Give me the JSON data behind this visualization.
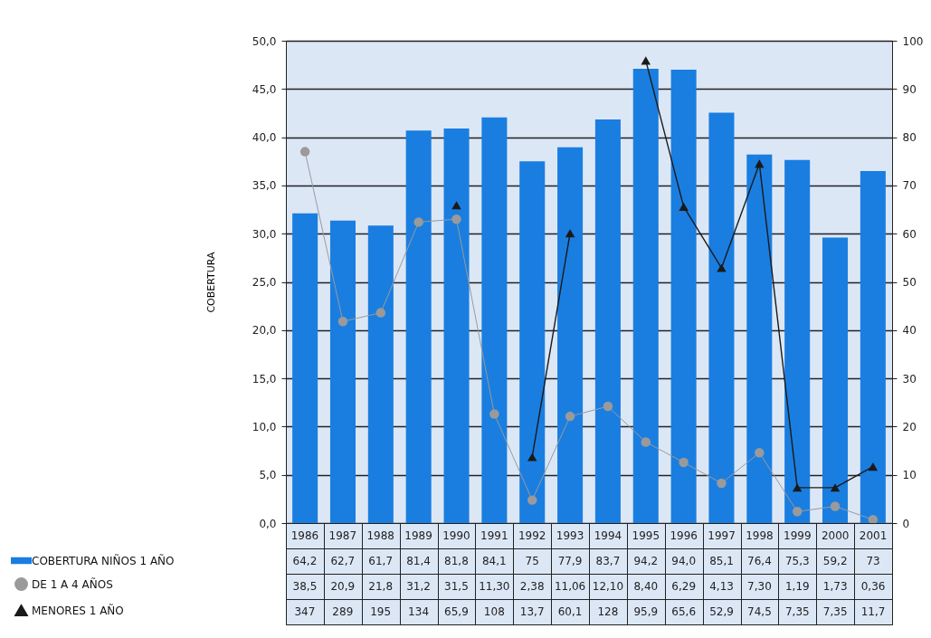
{
  "chart_data": {
    "type": "bar",
    "ylabel": "COBERTURA",
    "categories": [
      "1986",
      "1987",
      "1988",
      "1989",
      "1990",
      "1991",
      "1992",
      "1993",
      "1994",
      "1995",
      "1996",
      "1997",
      "1998",
      "1999",
      "2000",
      "2001"
    ],
    "series": [
      {
        "name": "COBERTURA NIÑOS 1 AÑO",
        "axis": "y2",
        "color": "#1a7ee0",
        "values": [
          64.2,
          62.7,
          61.7,
          81.4,
          81.8,
          84.1,
          75,
          77.9,
          83.7,
          94.2,
          94.0,
          85.1,
          76.4,
          75.3,
          59.2,
          73
        ],
        "value_labels": [
          "64,2",
          "62,7",
          "61,7",
          "81,4",
          "81,8",
          "84,1",
          "75",
          "77,9",
          "83,7",
          "94,2",
          "94,0",
          "85,1",
          "76,4",
          "75,3",
          "59,2",
          "73"
        ]
      },
      {
        "name": "DE 1 A 4 AÑOS",
        "type": "line",
        "axis": "y",
        "color": "#9a9a9a",
        "marker": "circle",
        "line_style": "solid",
        "values": [
          38.5,
          20.9,
          21.8,
          31.2,
          31.5,
          11.3,
          2.38,
          11.06,
          12.1,
          8.4,
          6.29,
          4.13,
          7.3,
          1.19,
          1.73,
          0.36
        ],
        "value_labels": [
          "38,5",
          "20,9",
          "21,8",
          "31,2",
          "31,5",
          "11,30",
          "2,38",
          "11,06",
          "12,10",
          "8,40",
          "6,29",
          "4,13",
          "7,30",
          "1,19",
          "1,73",
          "0,36"
        ]
      },
      {
        "name": "MENORES 1 AÑO",
        "type": "line",
        "axis": "y2",
        "color": "#1a1a1a",
        "marker": "triangle",
        "line_style": "solid",
        "values": [
          null,
          null,
          null,
          null,
          65.9,
          null,
          13.7,
          60.1,
          null,
          95.9,
          65.6,
          52.9,
          74.5,
          7.35,
          7.35,
          11.7
        ],
        "value_labels": [
          "347",
          "289",
          "195",
          "134",
          "65,9",
          "108",
          "13,7",
          "60,1",
          "128",
          "95,9",
          "65,6",
          "52,9",
          "74,5",
          "7,35",
          "7,35",
          "11,7"
        ]
      }
    ],
    "ylim": [
      0,
      50
    ],
    "yticks": [
      {
        "value": 0,
        "label": "0,0"
      },
      {
        "value": 5,
        "label": "5,0"
      },
      {
        "value": 10,
        "label": "10,0"
      },
      {
        "value": 15,
        "label": "15,0"
      },
      {
        "value": 20,
        "label": "20,0"
      },
      {
        "value": 25,
        "label": "25,0"
      },
      {
        "value": 30,
        "label": "30,0"
      },
      {
        "value": 35,
        "label": "35,0"
      },
      {
        "value": 40,
        "label": "40,0"
      },
      {
        "value": 45,
        "label": "45,0"
      },
      {
        "value": 50,
        "label": "50,0"
      }
    ],
    "y2lim": [
      0,
      100
    ],
    "y2ticks": [
      0,
      10,
      20,
      30,
      40,
      50,
      60,
      70,
      80,
      90,
      100
    ],
    "grid": "y",
    "legend": "bottom left"
  }
}
